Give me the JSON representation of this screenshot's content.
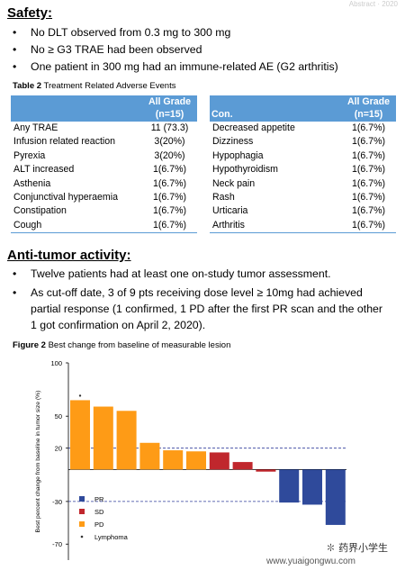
{
  "safety": {
    "heading": "Safety:",
    "bullets": [
      "No DLT observed from 0.3 mg to 300 mg",
      "No ≥ G3 TRAE had been observed",
      "One patient in 300 mg had an immune-related AE (G2 arthritis)"
    ]
  },
  "table2": {
    "label": "Table 2",
    "title": "Treatment Related Adverse Events",
    "left": {
      "header_col1": "",
      "header_col2_line1": "All Grade",
      "header_col2_line2": "(n=15)",
      "rows": [
        [
          "Any TRAE",
          "11 (73.3)"
        ],
        [
          "Infusion related reaction",
          "3(20%)"
        ],
        [
          "Pyrexia",
          "3(20%)"
        ],
        [
          "ALT increased",
          "1(6.7%)"
        ],
        [
          "Asthenia",
          "1(6.7%)"
        ],
        [
          "Conjunctival hyperaemia",
          "1(6.7%)"
        ],
        [
          "Constipation",
          "1(6.7%)"
        ],
        [
          "Cough",
          "1(6.7%)"
        ]
      ]
    },
    "right": {
      "header_col1": "Con.",
      "header_col2_line1": "All Grade",
      "header_col2_line2": "(n=15)",
      "rows": [
        [
          "Decreased appetite",
          "1(6.7%)"
        ],
        [
          "Dizziness",
          "1(6.7%)"
        ],
        [
          "Hypophagia",
          "1(6.7%)"
        ],
        [
          "Hypothyroidism",
          "1(6.7%)"
        ],
        [
          "Neck pain",
          "1(6.7%)"
        ],
        [
          "Rash",
          "1(6.7%)"
        ],
        [
          "Urticaria",
          "1(6.7%)"
        ],
        [
          "Arthritis",
          "1(6.7%)"
        ]
      ]
    }
  },
  "antitumor": {
    "heading": "Anti-tumor activity:",
    "bullets": [
      [
        "Twelve patients had at least one on-study tumor assessment."
      ],
      [
        "As cut-off date, 3 of 9 pts receiving dose level ≥ 10mg had achieved",
        "partial response (1 confirmed, 1 PD after the first PR scan and the other",
        "1 got confirmation on April 2, 2020)."
      ]
    ]
  },
  "figure2": {
    "label": "Figure 2",
    "title": "Best change from baseline of measurable lesion"
  },
  "colors": {
    "PR": "#2f4a9b",
    "SD": "#c0272d",
    "PD": "#fe9b16",
    "table_header": "#5b9bd5",
    "ref_line": "#2f3a9a"
  },
  "chart_data": {
    "type": "bar",
    "ylabel": "Best percent change from baseline in tumor size (%)",
    "yticks": [
      100,
      50,
      20,
      -30,
      -70
    ],
    "ylim": [
      -85,
      100
    ],
    "reference_lines": [
      20,
      -30
    ],
    "values": [
      65,
      59,
      55,
      25,
      18,
      17,
      16,
      7,
      -2,
      -31,
      -33,
      -52
    ],
    "response": [
      "PD",
      "PD",
      "PD",
      "PD",
      "PD",
      "PD",
      "SD",
      "SD",
      "SD",
      "PR",
      "PR",
      "PR"
    ],
    "markers": [
      {
        "bar_index": 0,
        "label": "Lymphoma"
      }
    ],
    "legend": [
      {
        "key": "PR",
        "label": "PR"
      },
      {
        "key": "SD",
        "label": "SD"
      },
      {
        "key": "PD",
        "label": "PD"
      },
      {
        "key": "Lymphoma",
        "label": "Lymphoma"
      }
    ],
    "legend_position": "bottom-left"
  },
  "watermark": {
    "top_right": "Abstract · 2020",
    "brand_name": "药界小学生",
    "site": "www.yuaigongwu.com"
  }
}
